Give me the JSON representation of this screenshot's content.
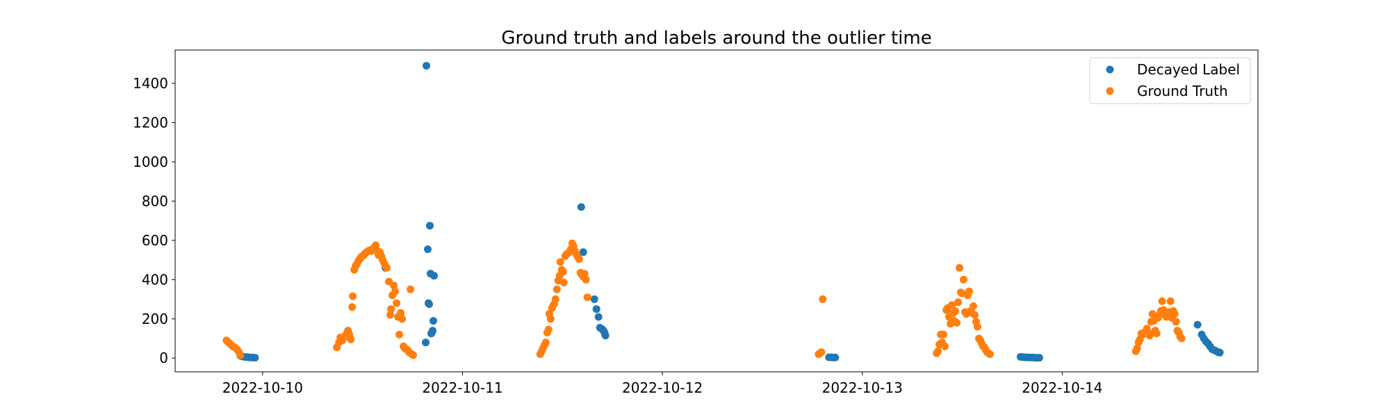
{
  "chart_data": {
    "type": "scatter",
    "title": "Ground truth and labels around the outlier time",
    "xlabel": "",
    "ylabel": "",
    "x_axis": "datetime",
    "xlim": [
      "2022-10-09T13:30",
      "2022-10-14T23:30"
    ],
    "ylim": [
      -70,
      1570
    ],
    "xticks": [
      "2022-10-10",
      "2022-10-11",
      "2022-10-12",
      "2022-10-13",
      "2022-10-14"
    ],
    "yticks": [
      0,
      200,
      400,
      600,
      800,
      1000,
      1200,
      1400
    ],
    "grid": false,
    "legend": "top-right",
    "series": [
      {
        "name": "Decayed Label",
        "color": "#1f77b4",
        "points": [
          [
            "2022-10-09T21:20",
            12
          ],
          [
            "2022-10-09T21:35",
            8
          ],
          [
            "2022-10-09T21:50",
            6
          ],
          [
            "2022-10-09T22:05",
            5
          ],
          [
            "2022-10-09T22:20",
            4
          ],
          [
            "2022-10-09T22:35",
            3
          ],
          [
            "2022-10-09T22:50",
            3
          ],
          [
            "2022-10-09T23:05",
            2
          ],
          [
            "2022-10-10T14:45",
            460
          ],
          [
            "2022-10-10T19:35",
            80
          ],
          [
            "2022-10-10T19:40",
            1490
          ],
          [
            "2022-10-10T19:50",
            555
          ],
          [
            "2022-10-10T19:55",
            280
          ],
          [
            "2022-10-10T20:00",
            275
          ],
          [
            "2022-10-10T20:05",
            675
          ],
          [
            "2022-10-10T20:10",
            430
          ],
          [
            "2022-10-10T20:15",
            125
          ],
          [
            "2022-10-10T20:20",
            130
          ],
          [
            "2022-10-10T20:25",
            140
          ],
          [
            "2022-10-10T20:30",
            190
          ],
          [
            "2022-10-10T20:35",
            420
          ],
          [
            "2022-10-11T14:15",
            770
          ],
          [
            "2022-10-11T14:30",
            540
          ],
          [
            "2022-10-11T15:50",
            300
          ],
          [
            "2022-10-11T16:05",
            250
          ],
          [
            "2022-10-11T16:20",
            210
          ],
          [
            "2022-10-11T16:30",
            155
          ],
          [
            "2022-10-11T16:40",
            150
          ],
          [
            "2022-10-11T16:50",
            145
          ],
          [
            "2022-10-11T17:00",
            135
          ],
          [
            "2022-10-11T17:05",
            125
          ],
          [
            "2022-10-11T17:10",
            115
          ],
          [
            "2022-10-12T20:00",
            4
          ],
          [
            "2022-10-12T20:15",
            4
          ],
          [
            "2022-10-12T20:30",
            3
          ],
          [
            "2022-10-12T20:45",
            3
          ],
          [
            "2022-10-13T19:00",
            6
          ],
          [
            "2022-10-13T19:15",
            5
          ],
          [
            "2022-10-13T19:30",
            4
          ],
          [
            "2022-10-13T19:45",
            4
          ],
          [
            "2022-10-13T20:00",
            3
          ],
          [
            "2022-10-13T20:15",
            3
          ],
          [
            "2022-10-13T20:30",
            3
          ],
          [
            "2022-10-13T20:45",
            2
          ],
          [
            "2022-10-13T21:00",
            2
          ],
          [
            "2022-10-13T21:15",
            2
          ],
          [
            "2022-10-14T16:15",
            170
          ],
          [
            "2022-10-14T16:45",
            120
          ],
          [
            "2022-10-14T17:00",
            100
          ],
          [
            "2022-10-14T17:15",
            85
          ],
          [
            "2022-10-14T17:30",
            75
          ],
          [
            "2022-10-14T17:45",
            60
          ],
          [
            "2022-10-14T18:00",
            45
          ],
          [
            "2022-10-14T18:15",
            40
          ],
          [
            "2022-10-14T18:30",
            35
          ],
          [
            "2022-10-14T18:45",
            30
          ],
          [
            "2022-10-14T18:55",
            28
          ]
        ]
      },
      {
        "name": "Ground Truth",
        "color": "#ff7f0e",
        "points": [
          [
            "2022-10-09T19:40",
            90
          ],
          [
            "2022-10-09T19:55",
            80
          ],
          [
            "2022-10-09T20:10",
            70
          ],
          [
            "2022-10-09T20:25",
            60
          ],
          [
            "2022-10-09T20:40",
            55
          ],
          [
            "2022-10-09T20:55",
            45
          ],
          [
            "2022-10-09T21:10",
            30
          ],
          [
            "2022-10-09T21:20",
            15
          ],
          [
            "2022-10-10T08:55",
            55
          ],
          [
            "2022-10-10T09:10",
            80
          ],
          [
            "2022-10-10T09:20",
            105
          ],
          [
            "2022-10-10T09:35",
            90
          ],
          [
            "2022-10-10T09:50",
            110
          ],
          [
            "2022-10-10T10:05",
            125
          ],
          [
            "2022-10-10T10:15",
            140
          ],
          [
            "2022-10-10T10:25",
            120
          ],
          [
            "2022-10-10T10:35",
            95
          ],
          [
            "2022-10-10T10:45",
            260
          ],
          [
            "2022-10-10T10:50",
            315
          ],
          [
            "2022-10-10T11:00",
            450
          ],
          [
            "2022-10-10T11:10",
            470
          ],
          [
            "2022-10-10T11:20",
            480
          ],
          [
            "2022-10-10T11:30",
            495
          ],
          [
            "2022-10-10T11:40",
            505
          ],
          [
            "2022-10-10T11:50",
            515
          ],
          [
            "2022-10-10T12:00",
            520
          ],
          [
            "2022-10-10T12:10",
            525
          ],
          [
            "2022-10-10T12:20",
            535
          ],
          [
            "2022-10-10T12:30",
            540
          ],
          [
            "2022-10-10T12:40",
            545
          ],
          [
            "2022-10-10T12:50",
            550
          ],
          [
            "2022-10-10T13:00",
            545
          ],
          [
            "2022-10-10T13:10",
            555
          ],
          [
            "2022-10-10T13:20",
            560
          ],
          [
            "2022-10-10T13:30",
            565
          ],
          [
            "2022-10-10T13:35",
            575
          ],
          [
            "2022-10-10T13:45",
            545
          ],
          [
            "2022-10-10T13:55",
            525
          ],
          [
            "2022-10-10T14:05",
            540
          ],
          [
            "2022-10-10T14:15",
            520
          ],
          [
            "2022-10-10T14:25",
            500
          ],
          [
            "2022-10-10T14:35",
            485
          ],
          [
            "2022-10-10T14:45",
            470
          ],
          [
            "2022-10-10T14:55",
            460
          ],
          [
            "2022-10-10T15:10",
            390
          ],
          [
            "2022-10-10T15:20",
            220
          ],
          [
            "2022-10-10T15:25",
            250
          ],
          [
            "2022-10-10T15:35",
            320
          ],
          [
            "2022-10-10T15:45",
            370
          ],
          [
            "2022-10-10T15:55",
            340
          ],
          [
            "2022-10-10T16:05",
            280
          ],
          [
            "2022-10-10T16:15",
            210
          ],
          [
            "2022-10-10T16:25",
            120
          ],
          [
            "2022-10-10T16:35",
            230
          ],
          [
            "2022-10-10T16:45",
            200
          ],
          [
            "2022-10-10T16:55",
            60
          ],
          [
            "2022-10-10T17:05",
            50
          ],
          [
            "2022-10-10T17:15",
            45
          ],
          [
            "2022-10-10T17:25",
            40
          ],
          [
            "2022-10-10T17:35",
            30
          ],
          [
            "2022-10-10T17:45",
            350
          ],
          [
            "2022-10-10T17:55",
            20
          ],
          [
            "2022-10-10T18:05",
            15
          ],
          [
            "2022-10-11T09:20",
            20
          ],
          [
            "2022-10-11T09:30",
            35
          ],
          [
            "2022-10-11T09:40",
            50
          ],
          [
            "2022-10-11T09:50",
            65
          ],
          [
            "2022-10-11T10:00",
            80
          ],
          [
            "2022-10-11T10:10",
            130
          ],
          [
            "2022-10-11T10:20",
            145
          ],
          [
            "2022-10-11T10:25",
            225
          ],
          [
            "2022-10-11T10:35",
            200
          ],
          [
            "2022-10-11T10:45",
            255
          ],
          [
            "2022-10-11T10:55",
            270
          ],
          [
            "2022-10-11T11:00",
            275
          ],
          [
            "2022-10-11T11:10",
            300
          ],
          [
            "2022-10-11T11:20",
            350
          ],
          [
            "2022-10-11T11:30",
            395
          ],
          [
            "2022-10-11T11:40",
            420
          ],
          [
            "2022-10-11T11:45",
            490
          ],
          [
            "2022-10-11T11:55",
            450
          ],
          [
            "2022-10-11T12:05",
            440
          ],
          [
            "2022-10-11T12:10",
            385
          ],
          [
            "2022-10-11T12:20",
            520
          ],
          [
            "2022-10-11T12:30",
            530
          ],
          [
            "2022-10-11T12:40",
            535
          ],
          [
            "2022-10-11T12:50",
            540
          ],
          [
            "2022-10-11T13:00",
            555
          ],
          [
            "2022-10-11T13:10",
            585
          ],
          [
            "2022-10-11T13:20",
            570
          ],
          [
            "2022-10-11T13:30",
            545
          ],
          [
            "2022-10-11T13:40",
            530
          ],
          [
            "2022-10-11T13:50",
            515
          ],
          [
            "2022-10-11T14:00",
            505
          ],
          [
            "2022-10-11T14:10",
            435
          ],
          [
            "2022-10-11T14:20",
            425
          ],
          [
            "2022-10-11T14:30",
            415
          ],
          [
            "2022-10-11T14:40",
            430
          ],
          [
            "2022-10-11T14:50",
            400
          ],
          [
            "2022-10-11T15:00",
            310
          ],
          [
            "2022-10-12T18:45",
            20
          ],
          [
            "2022-10-12T18:55",
            25
          ],
          [
            "2022-10-12T19:05",
            30
          ],
          [
            "2022-10-12T19:15",
            300
          ],
          [
            "2022-10-13T08:55",
            25
          ],
          [
            "2022-10-13T09:05",
            35
          ],
          [
            "2022-10-13T09:15",
            70
          ],
          [
            "2022-10-13T09:25",
            120
          ],
          [
            "2022-10-13T09:35",
            80
          ],
          [
            "2022-10-13T09:45",
            120
          ],
          [
            "2022-10-13T09:55",
            60
          ],
          [
            "2022-10-13T10:05",
            245
          ],
          [
            "2022-10-13T10:15",
            255
          ],
          [
            "2022-10-13T10:25",
            210
          ],
          [
            "2022-10-13T10:35",
            175
          ],
          [
            "2022-10-13T10:45",
            270
          ],
          [
            "2022-10-13T10:55",
            230
          ],
          [
            "2022-10-13T11:00",
            190
          ],
          [
            "2022-10-13T11:10",
            240
          ],
          [
            "2022-10-13T11:20",
            180
          ],
          [
            "2022-10-13T11:30",
            285
          ],
          [
            "2022-10-13T11:40",
            460
          ],
          [
            "2022-10-13T11:50",
            335
          ],
          [
            "2022-10-13T12:00",
            330
          ],
          [
            "2022-10-13T12:10",
            400
          ],
          [
            "2022-10-13T12:20",
            235
          ],
          [
            "2022-10-13T12:30",
            225
          ],
          [
            "2022-10-13T12:40",
            320
          ],
          [
            "2022-10-13T12:50",
            340
          ],
          [
            "2022-10-13T13:00",
            240
          ],
          [
            "2022-10-13T13:10",
            230
          ],
          [
            "2022-10-13T13:20",
            265
          ],
          [
            "2022-10-13T13:30",
            220
          ],
          [
            "2022-10-13T13:40",
            185
          ],
          [
            "2022-10-13T13:50",
            160
          ],
          [
            "2022-10-13T14:00",
            100
          ],
          [
            "2022-10-13T14:10",
            90
          ],
          [
            "2022-10-13T14:20",
            75
          ],
          [
            "2022-10-13T14:30",
            60
          ],
          [
            "2022-10-13T14:40",
            55
          ],
          [
            "2022-10-13T14:50",
            40
          ],
          [
            "2022-10-13T15:00",
            30
          ],
          [
            "2022-10-13T15:10",
            25
          ],
          [
            "2022-10-13T15:20",
            20
          ],
          [
            "2022-10-14T08:50",
            35
          ],
          [
            "2022-10-14T09:00",
            50
          ],
          [
            "2022-10-14T09:10",
            80
          ],
          [
            "2022-10-14T09:20",
            95
          ],
          [
            "2022-10-14T09:30",
            125
          ],
          [
            "2022-10-14T09:40",
            120
          ],
          [
            "2022-10-14T09:50",
            125
          ],
          [
            "2022-10-14T10:00",
            135
          ],
          [
            "2022-10-14T10:10",
            150
          ],
          [
            "2022-10-14T10:20",
            130
          ],
          [
            "2022-10-14T10:30",
            115
          ],
          [
            "2022-10-14T10:40",
            185
          ],
          [
            "2022-10-14T10:50",
            225
          ],
          [
            "2022-10-14T11:00",
            190
          ],
          [
            "2022-10-14T11:10",
            140
          ],
          [
            "2022-10-14T11:20",
            125
          ],
          [
            "2022-10-14T11:30",
            205
          ],
          [
            "2022-10-14T11:40",
            220
          ],
          [
            "2022-10-14T11:50",
            240
          ],
          [
            "2022-10-14T12:00",
            290
          ],
          [
            "2022-10-14T12:10",
            245
          ],
          [
            "2022-10-14T12:20",
            230
          ],
          [
            "2022-10-14T12:30",
            210
          ],
          [
            "2022-10-14T12:40",
            225
          ],
          [
            "2022-10-14T12:50",
            235
          ],
          [
            "2022-10-14T13:00",
            290
          ],
          [
            "2022-10-14T13:10",
            205
          ],
          [
            "2022-10-14T13:20",
            240
          ],
          [
            "2022-10-14T13:30",
            225
          ],
          [
            "2022-10-14T13:40",
            185
          ],
          [
            "2022-10-14T13:50",
            140
          ],
          [
            "2022-10-14T14:00",
            130
          ],
          [
            "2022-10-14T14:10",
            110
          ],
          [
            "2022-10-14T14:20",
            100
          ]
        ]
      }
    ]
  }
}
